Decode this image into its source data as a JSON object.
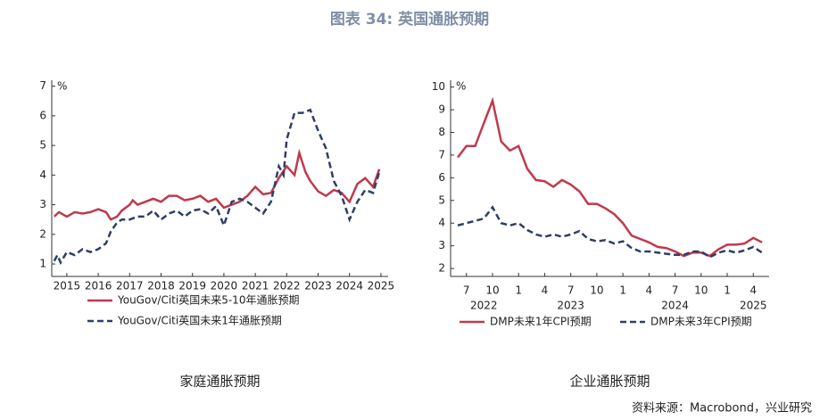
{
  "title": "图表 34: 英国通胀预期",
  "source": "资料来源：Macrobond，兴业研究",
  "chart_data": [
    {
      "type": "line",
      "subtitle": "家庭通胀预期",
      "y_unit": "%",
      "legend": "bottom",
      "xlim": [
        2014.52,
        2025.23
      ],
      "xticks": [
        2015,
        2016,
        2017,
        2018,
        2019,
        2020,
        2021,
        2022,
        2023,
        2024,
        2025
      ],
      "ylim": [
        0.58,
        7.2
      ],
      "yticks": [
        1,
        2,
        3,
        4,
        5,
        6,
        7
      ],
      "series": [
        {
          "name": "YouGov/Citi英国未来5-10年通胀预期",
          "color": "#c0394b",
          "dash": false,
          "x": [
            2014.6,
            2014.75,
            2015,
            2015.25,
            2015.5,
            2015.75,
            2016,
            2016.25,
            2016.4,
            2016.6,
            2016.75,
            2017,
            2017.1,
            2017.25,
            2017.5,
            2017.75,
            2018,
            2018.25,
            2018.5,
            2018.75,
            2019,
            2019.25,
            2019.5,
            2019.75,
            2020,
            2020.25,
            2020.5,
            2020.75,
            2021,
            2021.25,
            2021.5,
            2021.75,
            2022,
            2022.25,
            2022.4,
            2022.6,
            2022.75,
            2023,
            2023.25,
            2023.5,
            2023.75,
            2024,
            2024.25,
            2024.5,
            2024.75,
            2024.95
          ],
          "values": [
            2.6,
            2.75,
            2.6,
            2.75,
            2.7,
            2.75,
            2.85,
            2.75,
            2.5,
            2.6,
            2.8,
            3.0,
            3.15,
            3.0,
            3.1,
            3.2,
            3.1,
            3.3,
            3.3,
            3.15,
            3.2,
            3.3,
            3.1,
            3.2,
            2.9,
            3.0,
            3.1,
            3.3,
            3.6,
            3.35,
            3.4,
            3.9,
            4.3,
            4.0,
            4.75,
            4.1,
            3.8,
            3.45,
            3.3,
            3.5,
            3.4,
            3.1,
            3.7,
            3.9,
            3.6,
            4.2
          ]
        },
        {
          "name": "YouGov/Citi英国未来1年通胀预期",
          "color": "#2e3f66",
          "dash": true,
          "x": [
            2014.6,
            2014.7,
            2014.8,
            2015,
            2015.25,
            2015.5,
            2015.75,
            2016,
            2016.25,
            2016.4,
            2016.6,
            2016.75,
            2017,
            2017.25,
            2017.5,
            2017.75,
            2018,
            2018.25,
            2018.5,
            2018.75,
            2019,
            2019.25,
            2019.5,
            2019.75,
            2020,
            2020.25,
            2020.5,
            2020.75,
            2021,
            2021.25,
            2021.5,
            2021.75,
            2021.9,
            2022,
            2022.25,
            2022.5,
            2022.75,
            2023,
            2023.25,
            2023.5,
            2023.75,
            2024,
            2024.25,
            2024.5,
            2024.75,
            2024.95
          ],
          "values": [
            1.1,
            1.3,
            1.05,
            1.4,
            1.3,
            1.5,
            1.4,
            1.5,
            1.7,
            2.1,
            2.4,
            2.5,
            2.5,
            2.6,
            2.6,
            2.8,
            2.5,
            2.7,
            2.8,
            2.6,
            2.8,
            2.85,
            2.7,
            2.95,
            2.3,
            3.1,
            3.2,
            3.1,
            2.9,
            2.7,
            3.1,
            4.3,
            4.0,
            5.2,
            6.1,
            6.1,
            6.2,
            5.5,
            4.9,
            3.8,
            3.3,
            2.5,
            3.1,
            3.5,
            3.4,
            4.1
          ]
        }
      ]
    },
    {
      "type": "line",
      "subtitle": "企业通胀预期",
      "y_unit": "%",
      "legend": "bottom",
      "categories": [
        null,
        "7",
        null,
        null,
        "10",
        null,
        null,
        "1",
        null,
        null,
        "4",
        null,
        null,
        "7",
        null,
        null,
        "10",
        null,
        null,
        "1",
        null,
        null,
        "4",
        null,
        null,
        "7",
        null,
        null,
        "10",
        null,
        null,
        "1",
        null,
        null,
        "4",
        null
      ],
      "year_labels": [
        null,
        null,
        null,
        "2022",
        null,
        null,
        null,
        null,
        null,
        null,
        null,
        null,
        null,
        "2023",
        null,
        null,
        null,
        null,
        null,
        null,
        null,
        null,
        null,
        null,
        null,
        "2024",
        null,
        null,
        null,
        null,
        null,
        null,
        null,
        null,
        "2025",
        null
      ],
      "ylim": [
        1.65,
        10.3
      ],
      "yticks": [
        2,
        3,
        4,
        5,
        6,
        7,
        8,
        9,
        10
      ],
      "series": [
        {
          "name": "DMP未来1年CPI预期",
          "color": "#c0394b",
          "dash": false,
          "values": [
            6.9,
            7.4,
            7.4,
            8.4,
            9.4,
            7.6,
            7.2,
            7.4,
            6.4,
            5.9,
            5.85,
            5.6,
            5.9,
            5.7,
            5.4,
            4.85,
            4.85,
            4.65,
            4.4,
            4.0,
            3.45,
            3.3,
            3.15,
            2.95,
            2.9,
            2.75,
            2.55,
            2.7,
            2.7,
            2.55,
            2.85,
            3.05,
            3.05,
            3.1,
            3.35,
            3.15
          ]
        },
        {
          "name": "DMP未来3年CPI预期",
          "color": "#2e3f66",
          "dash": true,
          "values": [
            3.9,
            4.0,
            4.1,
            4.2,
            4.7,
            4.0,
            3.9,
            4.0,
            3.7,
            3.5,
            3.4,
            3.5,
            3.4,
            3.5,
            3.65,
            3.3,
            3.2,
            3.25,
            3.1,
            3.2,
            2.9,
            2.75,
            2.75,
            2.7,
            2.65,
            2.6,
            2.6,
            2.75,
            2.75,
            2.5,
            2.7,
            2.8,
            2.7,
            2.8,
            2.95,
            2.7
          ]
        }
      ]
    }
  ]
}
